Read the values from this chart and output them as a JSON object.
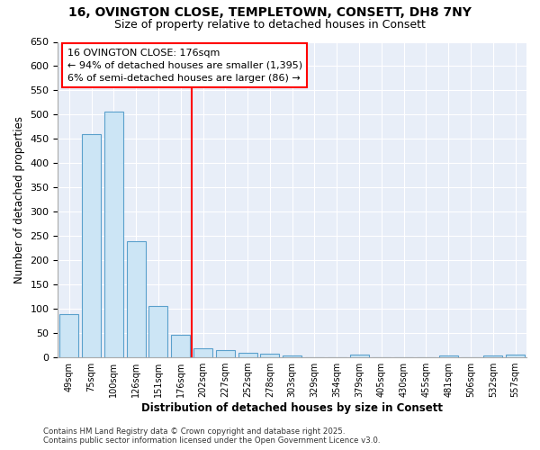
{
  "title_line1": "16, OVINGTON CLOSE, TEMPLETOWN, CONSETT, DH8 7NY",
  "title_line2": "Size of property relative to detached houses in Consett",
  "xlabel": "Distribution of detached houses by size in Consett",
  "ylabel": "Number of detached properties",
  "footer": "Contains HM Land Registry data © Crown copyright and database right 2025.\nContains public sector information licensed under the Open Government Licence v3.0.",
  "categories": [
    "49sqm",
    "75sqm",
    "100sqm",
    "126sqm",
    "151sqm",
    "176sqm",
    "202sqm",
    "227sqm",
    "252sqm",
    "278sqm",
    "303sqm",
    "329sqm",
    "354sqm",
    "379sqm",
    "405sqm",
    "430sqm",
    "455sqm",
    "481sqm",
    "506sqm",
    "532sqm",
    "557sqm"
  ],
  "values": [
    90,
    460,
    507,
    240,
    105,
    47,
    18,
    15,
    10,
    8,
    4,
    0,
    0,
    5,
    0,
    0,
    0,
    3,
    0,
    3,
    5
  ],
  "bar_color": "#cce5f5",
  "bar_edge_color": "#5aa0cc",
  "vline_color": "red",
  "vline_index": 5,
  "annotation_title": "16 OVINGTON CLOSE: 176sqm",
  "annotation_line1": "← 94% of detached houses are smaller (1,395)",
  "annotation_line2": "6% of semi-detached houses are larger (86) →",
  "ylim": [
    0,
    650
  ],
  "yticks": [
    0,
    50,
    100,
    150,
    200,
    250,
    300,
    350,
    400,
    450,
    500,
    550,
    600,
    650
  ],
  "background_color": "#ffffff",
  "plot_bg_color": "#e8eef8",
  "grid_color": "#ffffff",
  "figsize": [
    6.0,
    5.0
  ],
  "dpi": 100
}
